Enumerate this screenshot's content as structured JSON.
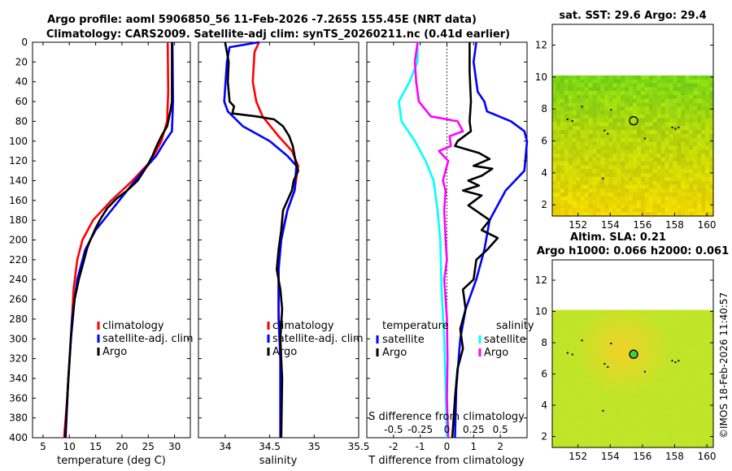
{
  "header": {
    "line1": "Argo profile: aoml 5906850_56 11-Feb-2026 -7.265S 155.45E (NRT data)",
    "line2": "Climatology: CARS2009. Satellite-adj clim: synTS_20260211.nc (0.41d earlier)"
  },
  "colors": {
    "climatology": "#ff0000",
    "satellite": "#0000ff",
    "argo": "#000000",
    "satellite_s": "#00ffff",
    "argo_s": "#ff00ff"
  },
  "chart_data": [
    {
      "type": "line",
      "id": "temperature",
      "xlabel": "temperature (deg C)",
      "ylabel": "",
      "xlim": [
        3,
        33
      ],
      "ylim": [
        400,
        0
      ],
      "xticks": [
        "5",
        "10",
        "15",
        "20",
        "25",
        "30"
      ],
      "xtick_values": [
        5,
        10,
        15,
        20,
        25,
        30
      ],
      "yticks": [
        "0",
        "20",
        "40",
        "60",
        "80",
        "100",
        "120",
        "140",
        "160",
        "180",
        "200",
        "220",
        "240",
        "260",
        "280",
        "300",
        "320",
        "340",
        "360",
        "380",
        "400"
      ],
      "ytick_values": [
        0,
        20,
        40,
        60,
        80,
        100,
        120,
        140,
        160,
        180,
        200,
        220,
        240,
        260,
        280,
        300,
        320,
        340,
        360,
        380,
        400
      ],
      "legend": [
        "climatology",
        "satellite-adj. clim",
        "Argo"
      ],
      "series": [
        {
          "name": "climatology",
          "color_key": "climatology",
          "points": [
            [
              28.7,
              0
            ],
            [
              28.8,
              50
            ],
            [
              28.6,
              80
            ],
            [
              27.5,
              100
            ],
            [
              25.5,
              120
            ],
            [
              22,
              140
            ],
            [
              18,
              160
            ],
            [
              14.5,
              180
            ],
            [
              12.5,
              200
            ],
            [
              11.5,
              220
            ],
            [
              10.8,
              250
            ],
            [
              10.3,
              300
            ],
            [
              9.6,
              360
            ],
            [
              9,
              400
            ]
          ]
        },
        {
          "name": "satellite-adj. clim",
          "color_key": "satellite",
          "points": [
            [
              29.6,
              0
            ],
            [
              29.7,
              60
            ],
            [
              29.5,
              90
            ],
            [
              28.2,
              100
            ],
            [
              26.5,
              115
            ],
            [
              24,
              130
            ],
            [
              21,
              150
            ],
            [
              18,
              170
            ],
            [
              15,
              190
            ],
            [
              13,
              210
            ],
            [
              11.5,
              240
            ],
            [
              10.5,
              280
            ],
            [
              9.8,
              340
            ],
            [
              9.3,
              400
            ]
          ]
        },
        {
          "name": "Argo",
          "color_key": "argo",
          "points": [
            [
              29.5,
              0
            ],
            [
              29.5,
              60
            ],
            [
              29.2,
              70
            ],
            [
              28.6,
              85
            ],
            [
              27.5,
              95
            ],
            [
              26.6,
              105
            ],
            [
              25.8,
              115
            ],
            [
              24.8,
              125
            ],
            [
              23,
              140
            ],
            [
              21,
              150
            ],
            [
              19,
              158
            ],
            [
              17.2,
              168
            ],
            [
              16,
              178
            ],
            [
              15,
              188
            ],
            [
              14,
              200
            ],
            [
              13.4,
              208
            ],
            [
              12.8,
              220
            ],
            [
              11.8,
              240
            ],
            [
              11,
              260
            ],
            [
              10.3,
              300
            ],
            [
              9.7,
              350
            ],
            [
              9.2,
              400
            ]
          ]
        }
      ]
    },
    {
      "type": "line",
      "id": "salinity",
      "xlabel": "salinity",
      "xlim": [
        33.7,
        35.5
      ],
      "ylim": [
        400,
        0
      ],
      "xticks": [
        "34",
        "34.5",
        "35",
        "35.5"
      ],
      "xtick_values": [
        34,
        34.5,
        35,
        35.5
      ],
      "legend": [
        "climatology",
        "satellite-adj. clim",
        "Argo"
      ],
      "series": [
        {
          "name": "climatology",
          "color_key": "climatology",
          "points": [
            [
              34.38,
              0
            ],
            [
              34.33,
              10
            ],
            [
              34.31,
              40
            ],
            [
              34.35,
              60
            ],
            [
              34.42,
              75
            ],
            [
              34.6,
              95
            ],
            [
              34.75,
              110
            ],
            [
              34.82,
              125
            ],
            [
              34.78,
              150
            ],
            [
              34.7,
              170
            ],
            [
              34.62,
              200
            ],
            [
              34.6,
              230
            ],
            [
              34.6,
              270
            ],
            [
              34.62,
              320
            ],
            [
              34.62,
              400
            ]
          ]
        },
        {
          "name": "satellite-adj. clim",
          "color_key": "satellite",
          "points": [
            [
              34.38,
              0
            ],
            [
              34.05,
              5
            ],
            [
              34.02,
              20
            ],
            [
              33.99,
              60
            ],
            [
              34.03,
              70
            ],
            [
              34.2,
              85
            ],
            [
              34.5,
              100
            ],
            [
              34.7,
              115
            ],
            [
              34.8,
              125
            ],
            [
              34.78,
              150
            ],
            [
              34.7,
              170
            ],
            [
              34.63,
              200
            ],
            [
              34.6,
              230
            ],
            [
              34.6,
              280
            ],
            [
              34.62,
              320
            ],
            [
              34.62,
              400
            ]
          ]
        },
        {
          "name": "Argo",
          "color_key": "argo",
          "points": [
            [
              34.0,
              0
            ],
            [
              34.02,
              10
            ],
            [
              34.04,
              20
            ],
            [
              34.03,
              40
            ],
            [
              34.05,
              60
            ],
            [
              34.1,
              65
            ],
            [
              34.08,
              72
            ],
            [
              34.35,
              75
            ],
            [
              34.55,
              78
            ],
            [
              34.65,
              85
            ],
            [
              34.72,
              95
            ],
            [
              34.76,
              105
            ],
            [
              34.79,
              120
            ],
            [
              34.82,
              130
            ],
            [
              34.77,
              140
            ],
            [
              34.75,
              150
            ],
            [
              34.7,
              160
            ],
            [
              34.65,
              170
            ],
            [
              34.63,
              190
            ],
            [
              34.6,
              210
            ],
            [
              34.58,
              230
            ],
            [
              34.62,
              250
            ],
            [
              34.64,
              270
            ],
            [
              34.62,
              300
            ],
            [
              34.64,
              340
            ],
            [
              34.63,
              400
            ]
          ]
        }
      ]
    },
    {
      "type": "line",
      "id": "difference",
      "xlabel": "T difference from climatology",
      "xlim": [
        -3,
        3
      ],
      "ylim": [
        400,
        0
      ],
      "xticks": [
        "-2",
        "-1",
        "0",
        "1",
        "2"
      ],
      "xtick_values": [
        -2,
        -1,
        0,
        1,
        2
      ],
      "top_label": "S difference from climatology",
      "sticks": [
        "-0.5",
        "-0.25",
        "0",
        "0.25",
        "0.5"
      ],
      "stick_values": [
        -2,
        -1,
        0,
        1,
        2
      ],
      "legend_t_title": "temperature",
      "legend_s_title": "salinity",
      "legend_t": [
        "satellite",
        "Argo"
      ],
      "legend_s": [
        "satellite",
        "Argo"
      ],
      "series": [
        {
          "name": "T satellite",
          "color_key": "satellite",
          "points": [
            [
              1.1,
              0
            ],
            [
              1.0,
              20
            ],
            [
              1.15,
              50
            ],
            [
              1.4,
              60
            ],
            [
              1.5,
              70
            ],
            [
              2.4,
              80
            ],
            [
              2.9,
              90
            ],
            [
              3.0,
              100
            ],
            [
              2.9,
              130
            ],
            [
              2.2,
              150
            ],
            [
              1.6,
              180
            ],
            [
              1.4,
              210
            ],
            [
              1.1,
              240
            ],
            [
              0.7,
              270
            ],
            [
              0.5,
              300
            ],
            [
              0.35,
              350
            ],
            [
              0.3,
              400
            ]
          ]
        },
        {
          "name": "T Argo",
          "color_key": "argo",
          "points": [
            [
              0.85,
              0
            ],
            [
              0.85,
              30
            ],
            [
              0.9,
              60
            ],
            [
              0.85,
              80
            ],
            [
              0.9,
              90
            ],
            [
              0.4,
              100
            ],
            [
              0.3,
              105
            ],
            [
              1.2,
              112
            ],
            [
              1.6,
              118
            ],
            [
              1.0,
              125
            ],
            [
              1.7,
              128
            ],
            [
              1.3,
              135
            ],
            [
              0.8,
              140
            ],
            [
              1.2,
              145
            ],
            [
              0.6,
              150
            ],
            [
              1.3,
              155
            ],
            [
              0.8,
              165
            ],
            [
              1.6,
              180
            ],
            [
              1.3,
              190
            ],
            [
              1.9,
              198
            ],
            [
              1.5,
              210
            ],
            [
              1.1,
              220
            ],
            [
              1.0,
              240
            ],
            [
              0.6,
              250
            ],
            [
              0.7,
              270
            ],
            [
              0.5,
              290
            ],
            [
              0.6,
              310
            ],
            [
              0.4,
              330
            ],
            [
              0.3,
              360
            ],
            [
              0.2,
              400
            ]
          ]
        },
        {
          "name": "S satellite",
          "color_key": "satellite_s",
          "points": [
            [
              -1.1,
              0
            ],
            [
              -1.1,
              20
            ],
            [
              -1.4,
              40
            ],
            [
              -1.8,
              60
            ],
            [
              -1.7,
              80
            ],
            [
              -1.2,
              100
            ],
            [
              -0.8,
              120
            ],
            [
              -0.5,
              140
            ],
            [
              -0.35,
              170
            ],
            [
              -0.25,
              200
            ],
            [
              -0.2,
              250
            ],
            [
              -0.1,
              300
            ],
            [
              -0.05,
              350
            ],
            [
              0,
              400
            ]
          ]
        },
        {
          "name": "S Argo",
          "color_key": "argo_s",
          "points": [
            [
              -1.1,
              0
            ],
            [
              -1.2,
              20
            ],
            [
              -1.15,
              40
            ],
            [
              -1.05,
              60
            ],
            [
              -0.6,
              75
            ],
            [
              0.4,
              80
            ],
            [
              0.6,
              90
            ],
            [
              0.1,
              95
            ],
            [
              0.15,
              105
            ],
            [
              -0.3,
              110
            ],
            [
              0.05,
              120
            ],
            [
              -0.15,
              140
            ],
            [
              -0.05,
              150
            ],
            [
              -0.1,
              170
            ],
            [
              -0.05,
              200
            ],
            [
              0,
              220
            ],
            [
              -0.1,
              240
            ],
            [
              -0.05,
              260
            ],
            [
              0,
              280
            ],
            [
              0.02,
              320
            ],
            [
              0,
              360
            ],
            [
              0.05,
              400
            ]
          ]
        }
      ]
    },
    {
      "type": "heatmap",
      "id": "sst_map",
      "title": "sat. SST: 29.6 Argo: 29.4",
      "xlim": [
        150.4,
        160.4
      ],
      "ylim": [
        1.3,
        13.3
      ],
      "xticks": [
        "152",
        "154",
        "156",
        "158",
        "160"
      ],
      "xtick_values": [
        152,
        154,
        156,
        158,
        160
      ],
      "yticks": [
        "2",
        "4",
        "6",
        "8",
        "10",
        "12"
      ],
      "ytick_values": [
        2,
        4,
        6,
        8,
        10,
        12
      ],
      "data_top": 10.1,
      "float_position": [
        155.45,
        7.265
      ]
    },
    {
      "type": "heatmap",
      "id": "sla_map",
      "title": "Altim. SLA: 0.21",
      "subtitle": "Argo h1000: 0.066 h2000: 0.061",
      "xlim": [
        150.4,
        160.4
      ],
      "ylim": [
        1.3,
        13.3
      ],
      "xticks": [
        "152",
        "154",
        "156",
        "158",
        "160"
      ],
      "xtick_values": [
        152,
        154,
        156,
        158,
        160
      ],
      "yticks": [
        "2",
        "4",
        "6",
        "8",
        "10",
        "12"
      ],
      "ytick_values": [
        2,
        4,
        6,
        8,
        10,
        12
      ],
      "data_top": 10.1,
      "float_position": [
        155.45,
        7.265
      ]
    }
  ],
  "footer": {
    "credit": "©IMOS 18-Feb-2026 11:40:57"
  }
}
